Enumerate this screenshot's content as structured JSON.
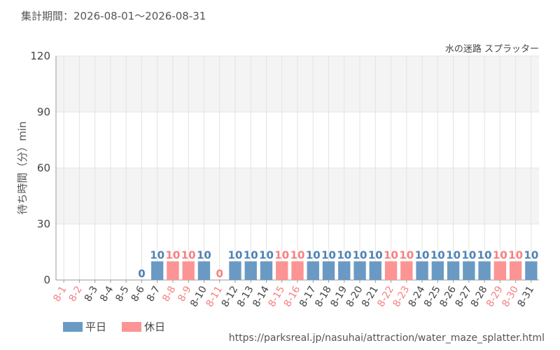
{
  "header": {
    "period_label": "集計期間：2026-08-01～2026-08-31"
  },
  "footer": {
    "source_url": "https://parksreal.jp/nasuhai/attraction/water_maze_splatter.html"
  },
  "colors": {
    "weekday": "#6a9ac4",
    "holiday": "#fb9493",
    "weekday_text": "#4f81b3",
    "holiday_text": "#f77f7f",
    "grid": "#e3e3e3",
    "band": "#f4f4f4"
  },
  "chart_data": {
    "type": "bar",
    "series_title": "水の迷路 スプラッター",
    "ylabel": "待ち時間（分）min",
    "ylim": [
      0,
      120
    ],
    "yticks": [
      0,
      30,
      60,
      90,
      120
    ],
    "categories": [
      "8-1",
      "8-2",
      "8-3",
      "8-4",
      "8-5",
      "8-6",
      "8-7",
      "8-8",
      "8-9",
      "8-10",
      "8-11",
      "8-12",
      "8-13",
      "8-14",
      "8-15",
      "8-16",
      "8-17",
      "8-18",
      "8-19",
      "8-20",
      "8-21",
      "8-22",
      "8-23",
      "8-24",
      "8-25",
      "8-26",
      "8-27",
      "8-28",
      "8-29",
      "8-30",
      "8-31"
    ],
    "values": [
      null,
      null,
      null,
      null,
      null,
      0,
      10,
      10,
      10,
      10,
      0,
      10,
      10,
      10,
      10,
      10,
      10,
      10,
      10,
      10,
      10,
      10,
      10,
      10,
      10,
      10,
      10,
      10,
      10,
      10,
      10
    ],
    "day_type": [
      "holiday",
      "holiday",
      "weekday",
      "weekday",
      "weekday",
      "weekday",
      "weekday",
      "holiday",
      "holiday",
      "weekday",
      "holiday",
      "weekday",
      "weekday",
      "weekday",
      "holiday",
      "holiday",
      "weekday",
      "weekday",
      "weekday",
      "weekday",
      "weekday",
      "holiday",
      "holiday",
      "weekday",
      "weekday",
      "weekday",
      "weekday",
      "weekday",
      "holiday",
      "holiday",
      "weekday"
    ],
    "legend": [
      {
        "key": "weekday",
        "label": "平日"
      },
      {
        "key": "holiday",
        "label": "休日"
      }
    ],
    "legend_position": "bottom-left",
    "grid": true
  }
}
